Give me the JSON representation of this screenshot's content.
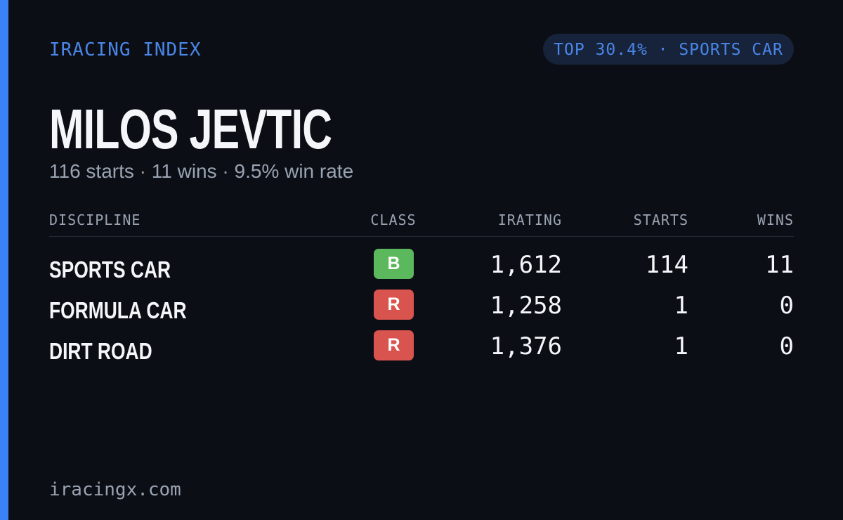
{
  "header": {
    "brand": "IRACING INDEX",
    "badge": "TOP 30.4% · SPORTS CAR"
  },
  "driver": {
    "name": "MILOS JEVTIC",
    "summary": "116 starts · 11 wins · 9.5% win rate"
  },
  "table": {
    "columns": [
      "DISCIPLINE",
      "CLASS",
      "IRATING",
      "STARTS",
      "WINS"
    ],
    "rows": [
      [
        "SPORTS CAR",
        "B",
        "1,612",
        "114",
        "11"
      ],
      [
        "FORMULA CAR",
        "R",
        "1,258",
        "1",
        "0"
      ],
      [
        "DIRT ROAD",
        "R",
        "1,376",
        "1",
        "0"
      ]
    ],
    "class_colors": [
      "#5cb85c",
      "#d9534f",
      "#d9534f"
    ]
  },
  "footer": {
    "site": "iracingx.com"
  }
}
